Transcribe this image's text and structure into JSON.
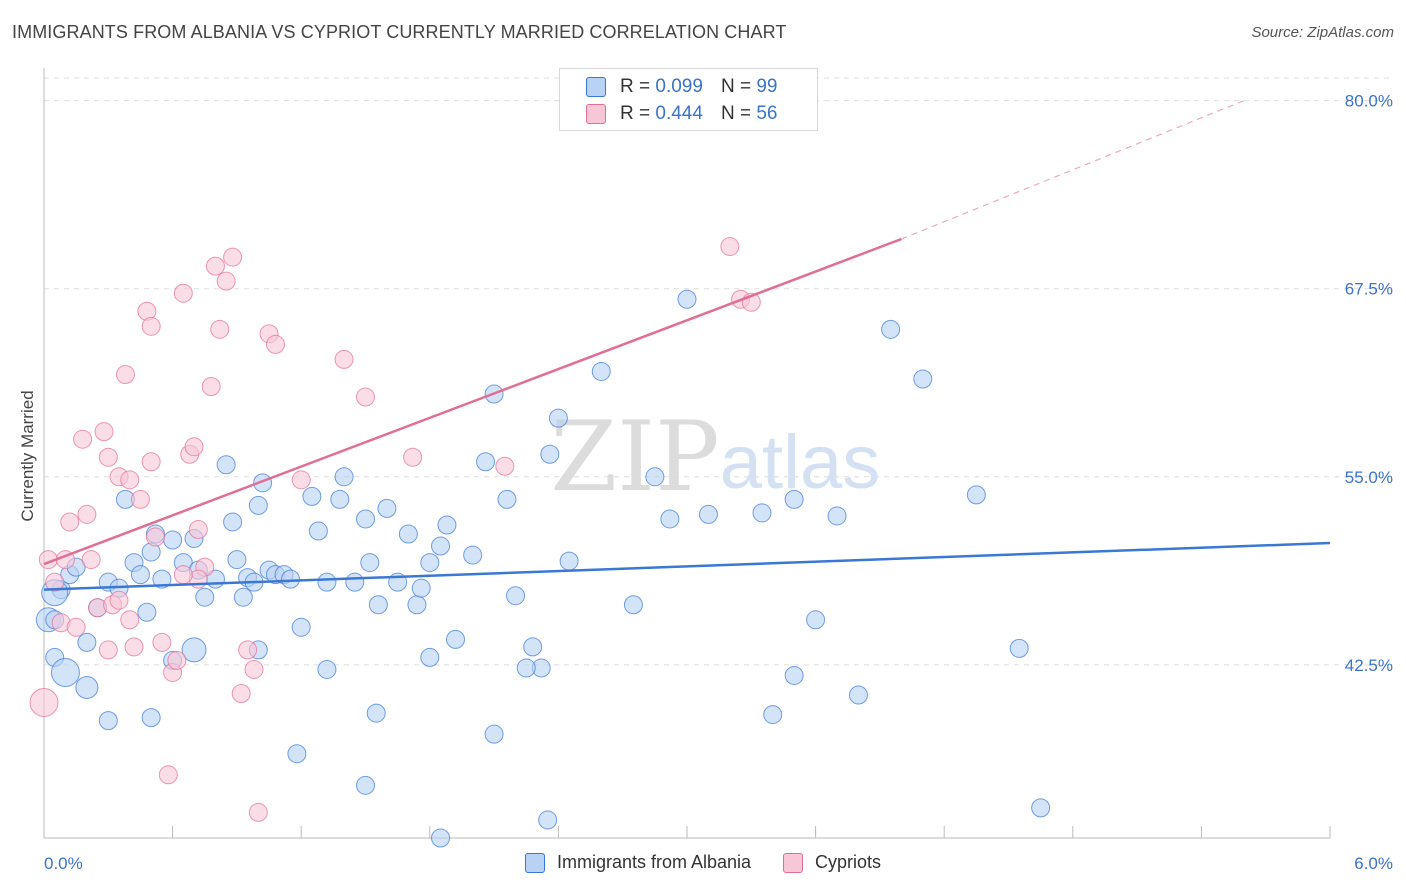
{
  "title": "IMMIGRANTS FROM ALBANIA VS CYPRIOT CURRENTLY MARRIED CORRELATION CHART",
  "source": "Source: ZipAtlas.com",
  "watermark": {
    "zip": "ZIP",
    "atlas": "atlas"
  },
  "colors": {
    "blue": "#3b78d4",
    "blue_fill": "#b8d2f3",
    "pink": "#e06f96",
    "pink_fill": "#f8c7d7",
    "grid": "#dddddd",
    "tick_label": "#3a73c9"
  },
  "legend": {
    "r_label": "R =",
    "n_label": "N =",
    "series": [
      {
        "r": "0.099",
        "n": "99"
      },
      {
        "r": "0.444",
        "n": "56"
      }
    ]
  },
  "bottom_legend": [
    "Immigrants from Albania",
    "Cypriots"
  ],
  "chart_data": {
    "type": "scatter",
    "title": "IMMIGRANTS FROM ALBANIA VS CYPRIOT CURRENTLY MARRIED CORRELATION CHART",
    "xlabel": "",
    "ylabel": "Currently Married",
    "xlim": [
      0,
      6
    ],
    "ylim": [
      31,
      81.5
    ],
    "x_tick_labels": [
      "0.0%",
      "6.0%"
    ],
    "y_ticks": [
      42.5,
      55.0,
      67.5,
      80.0
    ],
    "y_tick_labels": [
      "42.5%",
      "55.0%",
      "67.5%",
      "80.0%"
    ],
    "series": [
      {
        "name": "Immigrants from Albania",
        "r": 0.099,
        "n": 99,
        "trend": {
          "x": [
            0,
            6
          ],
          "y": [
            47.5,
            50.6
          ]
        },
        "points": [
          [
            0.02,
            45.5
          ],
          [
            0.05,
            45.5
          ],
          [
            0.08,
            47.5
          ],
          [
            0.12,
            48.5
          ],
          [
            0.15,
            49.0
          ],
          [
            0.2,
            44.0
          ],
          [
            0.25,
            46.3
          ],
          [
            0.3,
            48.0
          ],
          [
            0.35,
            47.6
          ],
          [
            0.38,
            53.5
          ],
          [
            0.42,
            49.3
          ],
          [
            0.45,
            48.5
          ],
          [
            0.5,
            50.0
          ],
          [
            0.52,
            51.2
          ],
          [
            0.55,
            48.2
          ],
          [
            0.6,
            50.8
          ],
          [
            0.65,
            49.3
          ],
          [
            0.7,
            50.9
          ],
          [
            0.72,
            48.8
          ],
          [
            0.75,
            47.0
          ],
          [
            0.8,
            48.2
          ],
          [
            0.85,
            55.8
          ],
          [
            0.88,
            52.0
          ],
          [
            0.9,
            49.5
          ],
          [
            0.93,
            47.0
          ],
          [
            0.95,
            48.3
          ],
          [
            0.98,
            48.0
          ],
          [
            1.0,
            53.1
          ],
          [
            1.02,
            54.6
          ],
          [
            1.05,
            48.8
          ],
          [
            1.08,
            48.5
          ],
          [
            1.12,
            48.5
          ],
          [
            1.15,
            48.2
          ],
          [
            1.2,
            45.0
          ],
          [
            1.25,
            53.7
          ],
          [
            1.28,
            51.4
          ],
          [
            1.32,
            48.0
          ],
          [
            1.38,
            53.5
          ],
          [
            1.4,
            55.0
          ],
          [
            1.45,
            48.0
          ],
          [
            1.5,
            52.2
          ],
          [
            1.52,
            49.3
          ],
          [
            1.56,
            46.5
          ],
          [
            1.6,
            52.9
          ],
          [
            1.65,
            48.0
          ],
          [
            1.7,
            51.2
          ],
          [
            1.74,
            46.5
          ],
          [
            1.76,
            47.6
          ],
          [
            1.8,
            49.3
          ],
          [
            1.85,
            50.4
          ],
          [
            1.88,
            51.8
          ],
          [
            1.92,
            44.2
          ],
          [
            2.0,
            49.8
          ],
          [
            2.06,
            56.0
          ],
          [
            2.1,
            60.5
          ],
          [
            2.16,
            53.5
          ],
          [
            2.2,
            47.1
          ],
          [
            2.28,
            43.7
          ],
          [
            2.32,
            42.3
          ],
          [
            2.36,
            56.5
          ],
          [
            2.4,
            58.9
          ],
          [
            2.45,
            49.4
          ],
          [
            2.6,
            62.0
          ],
          [
            2.75,
            46.5
          ],
          [
            2.85,
            55.0
          ],
          [
            2.92,
            52.2
          ],
          [
            3.0,
            66.8
          ],
          [
            3.1,
            52.5
          ],
          [
            3.35,
            52.6
          ],
          [
            3.5,
            53.5
          ],
          [
            3.6,
            45.5
          ],
          [
            3.7,
            52.4
          ],
          [
            3.8,
            40.5
          ],
          [
            3.95,
            64.8
          ],
          [
            4.1,
            61.5
          ],
          [
            4.35,
            53.8
          ],
          [
            4.55,
            43.6
          ],
          [
            4.65,
            33.0
          ],
          [
            1.0,
            43.5
          ],
          [
            0.5,
            39.0
          ],
          [
            0.3,
            38.8
          ],
          [
            0.6,
            42.8
          ],
          [
            0.2,
            41.0
          ],
          [
            1.18,
            36.6
          ],
          [
            1.32,
            42.2
          ],
          [
            1.5,
            34.5
          ],
          [
            1.55,
            39.3
          ],
          [
            1.8,
            43.0
          ],
          [
            1.85,
            31.0
          ],
          [
            2.1,
            37.9
          ],
          [
            2.25,
            42.3
          ],
          [
            2.35,
            32.2
          ],
          [
            3.4,
            39.2
          ],
          [
            3.5,
            41.8
          ],
          [
            0.05,
            43.0
          ],
          [
            0.1,
            42.0
          ],
          [
            0.05,
            47.3
          ],
          [
            0.48,
            46.0
          ],
          [
            0.7,
            43.5
          ]
        ]
      },
      {
        "name": "Cypriots",
        "r": 0.444,
        "n": 56,
        "trend": {
          "x": [
            0,
            4.0
          ],
          "y": [
            49.2,
            70.8
          ]
        },
        "trend_dashed": {
          "x": [
            4.0,
            5.6
          ],
          "y": [
            70.8,
            80.0
          ]
        },
        "points": [
          [
            0.0,
            40.0
          ],
          [
            0.02,
            49.5
          ],
          [
            0.05,
            48.0
          ],
          [
            0.08,
            45.3
          ],
          [
            0.1,
            49.5
          ],
          [
            0.12,
            52.0
          ],
          [
            0.15,
            45.0
          ],
          [
            0.18,
            57.5
          ],
          [
            0.2,
            52.5
          ],
          [
            0.22,
            49.5
          ],
          [
            0.25,
            46.3
          ],
          [
            0.28,
            58.0
          ],
          [
            0.3,
            56.3
          ],
          [
            0.32,
            46.5
          ],
          [
            0.35,
            55.0
          ],
          [
            0.38,
            61.8
          ],
          [
            0.4,
            54.8
          ],
          [
            0.42,
            43.7
          ],
          [
            0.45,
            53.5
          ],
          [
            0.48,
            66.0
          ],
          [
            0.5,
            65.0
          ],
          [
            0.52,
            51.0
          ],
          [
            0.55,
            44.0
          ],
          [
            0.58,
            35.2
          ],
          [
            0.6,
            42.0
          ],
          [
            0.62,
            42.8
          ],
          [
            0.65,
            67.2
          ],
          [
            0.68,
            56.5
          ],
          [
            0.7,
            57.0
          ],
          [
            0.72,
            51.5
          ],
          [
            0.75,
            49.0
          ],
          [
            0.78,
            61.0
          ],
          [
            0.8,
            69.0
          ],
          [
            0.82,
            64.8
          ],
          [
            0.85,
            68.0
          ],
          [
            0.88,
            69.6
          ],
          [
            0.92,
            40.6
          ],
          [
            0.95,
            43.5
          ],
          [
            0.98,
            42.2
          ],
          [
            1.0,
            32.7
          ],
          [
            1.05,
            64.5
          ],
          [
            1.08,
            63.8
          ],
          [
            1.2,
            54.8
          ],
          [
            1.4,
            62.8
          ],
          [
            1.5,
            60.3
          ],
          [
            1.72,
            56.3
          ],
          [
            2.15,
            55.7
          ],
          [
            3.2,
            70.3
          ],
          [
            3.25,
            66.8
          ],
          [
            3.3,
            66.6
          ],
          [
            0.4,
            45.5
          ],
          [
            0.72,
            48.2
          ],
          [
            0.5,
            56.0
          ],
          [
            0.3,
            43.5
          ],
          [
            0.65,
            48.5
          ],
          [
            0.35,
            46.8
          ]
        ]
      }
    ]
  }
}
